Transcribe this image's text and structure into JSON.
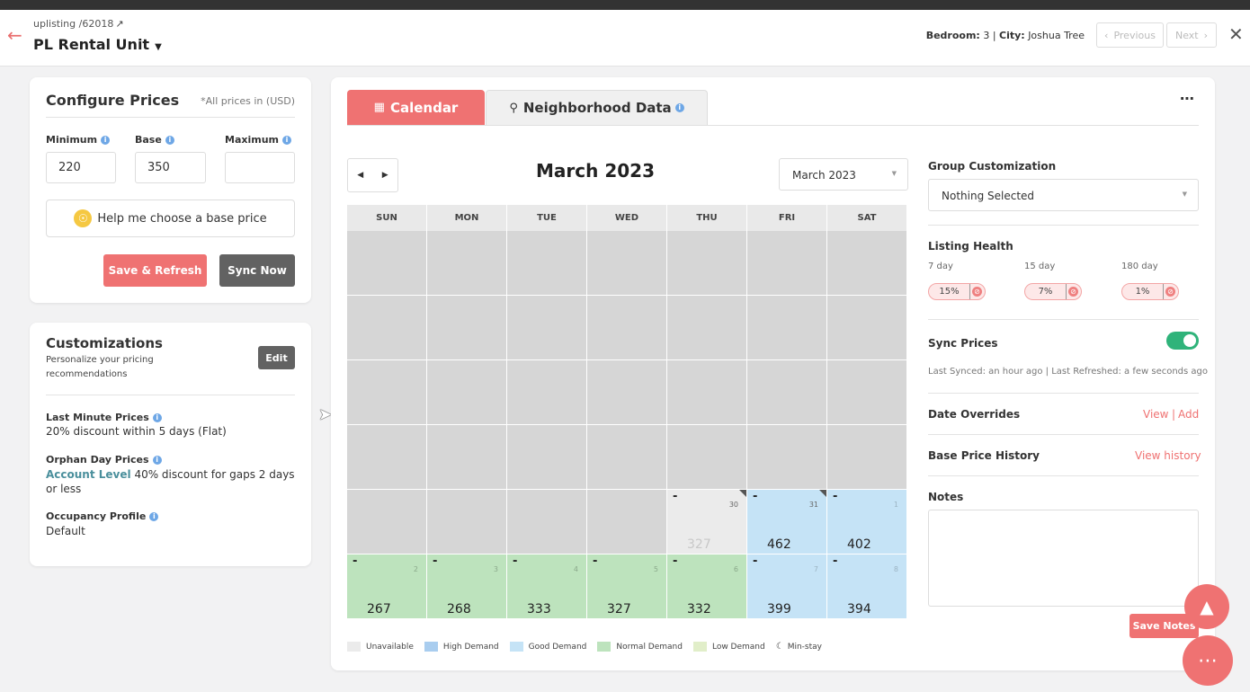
{
  "header": {
    "breadcrumb": "uplisting /62018",
    "unit_title": "PL Rental Unit",
    "bedroom_label": "Bedroom:",
    "bedroom_value": "3",
    "city_label": "City:",
    "city_value": "Joshua Tree",
    "previous_label": "Previous",
    "next_label": "Next"
  },
  "configure": {
    "title": "Configure Prices",
    "currency_note": "*All prices in (USD)",
    "minimum_label": "Minimum",
    "base_label": "Base",
    "maximum_label": "Maximum",
    "minimum_value": "220",
    "base_value": "350",
    "maximum_value": "",
    "help_label": "Help me choose a base price",
    "save_refresh_label": "Save & Refresh",
    "sync_now_label": "Sync Now"
  },
  "customizations": {
    "title": "Customizations",
    "subtitle": "Personalize your pricing recommendations",
    "edit_label": "Edit",
    "last_minute_label": "Last Minute Prices",
    "last_minute_value": "20% discount within 5 days (Flat)",
    "orphan_label": "Orphan Day Prices",
    "orphan_level": "Account Level",
    "orphan_value": " 40% discount for gaps 2 days or less",
    "occupancy_label": "Occupancy Profile",
    "occupancy_value": "Default"
  },
  "tabs": {
    "calendar": "Calendar",
    "neighborhood": "Neighborhood Data"
  },
  "calendar": {
    "month_title": "March 2023",
    "month_select": "March 2023",
    "days_of_week": [
      "SUN",
      "MON",
      "TUE",
      "WED",
      "THU",
      "FRI",
      "SAT"
    ],
    "week5": [
      {
        "date": "30",
        "price": "327",
        "state": "unavailable"
      },
      {
        "date": "31",
        "price": "462",
        "state": "good"
      },
      {
        "date": "1",
        "price": "402",
        "state": "good"
      }
    ],
    "week6": [
      {
        "date": "2",
        "price": "267",
        "state": "normal"
      },
      {
        "date": "3",
        "price": "268",
        "state": "normal"
      },
      {
        "date": "4",
        "price": "333",
        "state": "normal"
      },
      {
        "date": "5",
        "price": "327",
        "state": "normal"
      },
      {
        "date": "6",
        "price": "332",
        "state": "normal"
      },
      {
        "date": "7",
        "price": "399",
        "state": "good"
      },
      {
        "date": "8",
        "price": "394",
        "state": "good"
      }
    ],
    "dash": "-"
  },
  "legend": {
    "unavailable": "Unavailable",
    "high": "High Demand",
    "good": "Good Demand",
    "normal": "Normal Demand",
    "low": "Low Demand",
    "minstay": "Min-stay"
  },
  "colors": {
    "unavailable": "#ebebeb",
    "high": "#a9cdef",
    "good": "#c5e3f6",
    "normal": "#bde3bd",
    "low": "#e1eec9",
    "accent": "#ef7272"
  },
  "side": {
    "group_label": "Group Customization",
    "group_value": "Nothing Selected",
    "health_label": "Listing Health",
    "day7_label": "7 day",
    "day15_label": "15 day",
    "day180_label": "180 day",
    "day7_value": "15%",
    "day15_value": "7%",
    "day180_value": "1%",
    "sync_label": "Sync Prices",
    "synced_text": "Last Synced: an hour ago | Last Refreshed: a few seconds ago",
    "overrides_label": "Date Overrides",
    "view_label": "View",
    "sep": "|",
    "add_label": "Add",
    "history_label": "Base Price History",
    "view_history_label": "View history",
    "notes_label": "Notes",
    "save_notes_label": "Save Notes"
  }
}
